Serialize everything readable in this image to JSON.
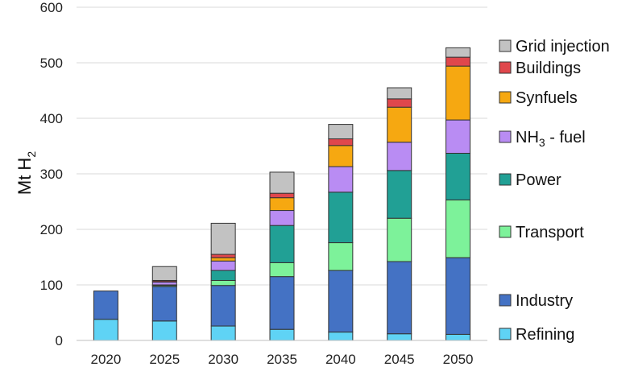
{
  "chart_data": {
    "type": "bar",
    "stacked": true,
    "title": "",
    "ylabel": "Mt H",
    "ylabel_subscript": "2",
    "ylim": [
      0,
      600
    ],
    "yticks": [
      0,
      100,
      200,
      300,
      400,
      500,
      600
    ],
    "grid": "horizontal",
    "legend_position": "right",
    "categories": [
      "2020",
      "2025",
      "2030",
      "2035",
      "2040",
      "2045",
      "2050"
    ],
    "series": [
      {
        "key": "refining",
        "name": "Refining",
        "color": "#5fd3f5",
        "values": [
          38,
          35,
          26,
          20,
          15,
          12,
          11
        ]
      },
      {
        "key": "industry",
        "name": "Industry",
        "color": "#4472c4",
        "values": [
          51,
          62,
          73,
          95,
          111,
          130,
          138
        ]
      },
      {
        "key": "transport",
        "name": "Transport",
        "color": "#7df29a",
        "values": [
          0,
          2,
          9,
          25,
          50,
          78,
          104
        ]
      },
      {
        "key": "power",
        "name": "Power",
        "color": "#21a095",
        "values": [
          0,
          1,
          18,
          67,
          91,
          86,
          84
        ]
      },
      {
        "key": "nh3",
        "name": "NH",
        "name_subscript": "3",
        "name_suffix": " - fuel",
        "color": "#b98cf3",
        "values": [
          0,
          5,
          17,
          27,
          46,
          51,
          60
        ]
      },
      {
        "key": "synfuels",
        "name": "Synfuels",
        "color": "#f6a811",
        "values": [
          0,
          1,
          6,
          23,
          38,
          63,
          97
        ]
      },
      {
        "key": "buildings",
        "name": "Buildings",
        "color": "#e0474c",
        "values": [
          0,
          2,
          6,
          8,
          12,
          15,
          16
        ]
      },
      {
        "key": "grid",
        "name": "Grid injection",
        "color": "#c2c2c2",
        "values": [
          0,
          25,
          56,
          38,
          26,
          20,
          17
        ]
      }
    ],
    "legend_order": [
      "grid",
      "buildings",
      "synfuels",
      "nh3",
      "power",
      "transport",
      "industry",
      "refining"
    ]
  }
}
